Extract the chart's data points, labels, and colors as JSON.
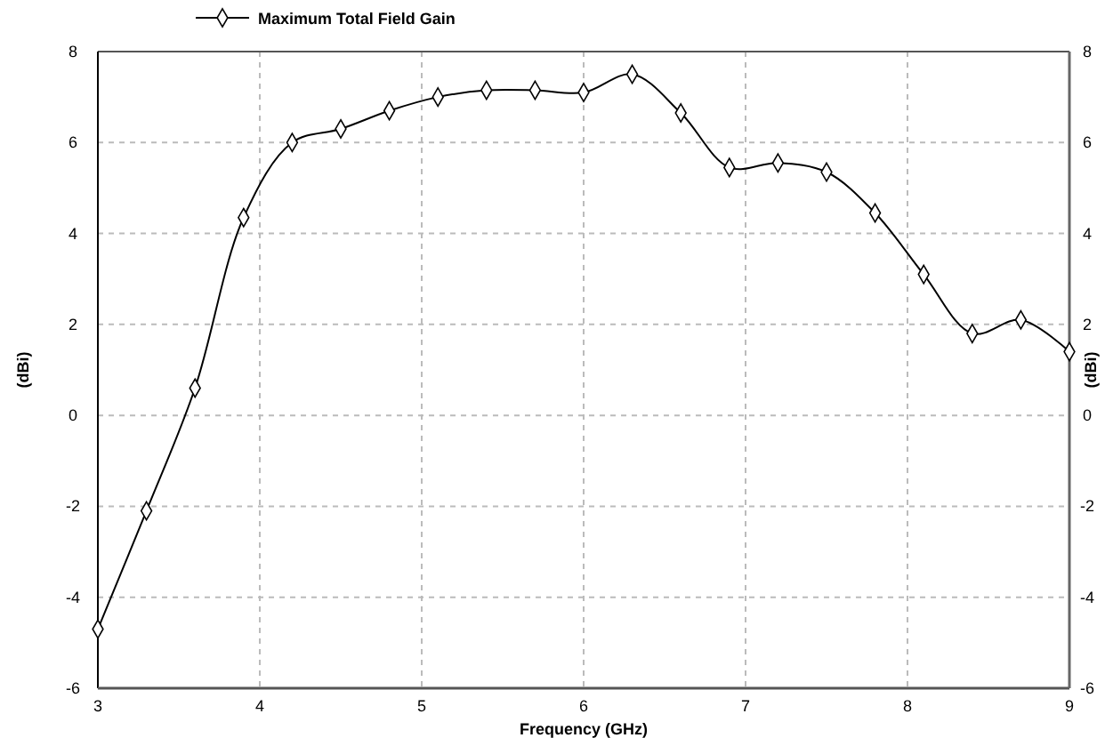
{
  "chart_data": {
    "type": "line",
    "xlabel": "Frequency (GHz)",
    "ylabel": "(dBi)",
    "y2label": "(dBi)",
    "x": [
      3,
      3.3,
      3.6,
      3.9,
      4.2,
      4.5,
      4.8,
      5.1,
      5.4,
      5.7,
      6.0,
      6.3,
      6.6,
      6.9,
      7.2,
      7.5,
      7.8,
      8.1,
      8.4,
      8.7,
      9.0
    ],
    "series": [
      {
        "name": "Maximum Total Field Gain",
        "color": "#000000",
        "values": [
          -4.7,
          -2.1,
          0.6,
          4.35,
          6.0,
          6.3,
          6.7,
          7.0,
          7.15,
          7.15,
          7.1,
          7.5,
          6.65,
          5.45,
          5.55,
          5.35,
          4.45,
          3.1,
          1.8,
          2.1,
          1.4
        ]
      }
    ],
    "xlim": [
      3,
      9
    ],
    "xticks": [
      3,
      4,
      5,
      6,
      7,
      8,
      9
    ],
    "ylim": [
      -6,
      8
    ],
    "yticks": [
      -6,
      -4,
      -2,
      0,
      2,
      4,
      6,
      8
    ],
    "y2lim": [
      -6,
      8
    ],
    "y2ticks": [
      -6,
      -4,
      -2,
      0,
      2,
      4,
      6,
      8
    ],
    "grid": true,
    "legend": "top left",
    "marker": "diamond",
    "line_style": "solid"
  }
}
